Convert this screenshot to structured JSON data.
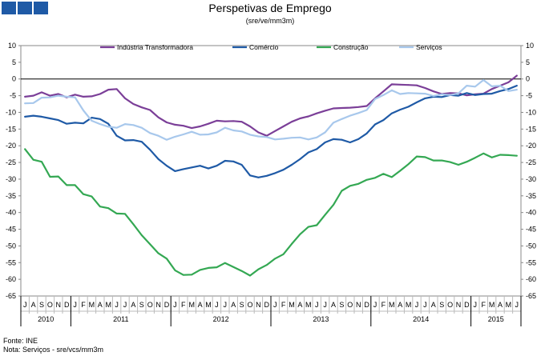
{
  "chart_data": {
    "type": "line",
    "title": "Perspetivas de Emprego",
    "subtitle": "(sre/ve/mm3m)",
    "ylim": [
      -65,
      10
    ],
    "yticks": [
      10,
      5,
      0,
      -5,
      -10,
      -15,
      -20,
      -25,
      -30,
      -35,
      -40,
      -45,
      -50,
      -55,
      -60,
      -65
    ],
    "grid": false,
    "legend_position": "top",
    "months": [
      "J",
      "A",
      "S",
      "O",
      "N",
      "D",
      "J",
      "F",
      "M",
      "A",
      "M",
      "J",
      "J",
      "A",
      "S",
      "O",
      "N",
      "D",
      "J",
      "F",
      "M",
      "A",
      "M",
      "J",
      "J",
      "A",
      "S",
      "O",
      "N",
      "D",
      "J",
      "F",
      "M",
      "A",
      "M",
      "J",
      "J",
      "A",
      "S",
      "O",
      "N",
      "D",
      "J",
      "F",
      "M",
      "A",
      "M",
      "J",
      "J",
      "A",
      "S",
      "O",
      "N",
      "D",
      "J",
      "F",
      "M",
      "A",
      "M",
      "J"
    ],
    "years": [
      {
        "label": "2010",
        "start": 0,
        "count": 6
      },
      {
        "label": "2011",
        "start": 6,
        "count": 12
      },
      {
        "label": "2012",
        "start": 18,
        "count": 12
      },
      {
        "label": "2013",
        "start": 30,
        "count": 12
      },
      {
        "label": "2014",
        "start": 42,
        "count": 12
      },
      {
        "label": "2015",
        "start": 54,
        "count": 6
      }
    ],
    "series": [
      {
        "name": "Indústria Transformadora",
        "color": "#7b3f98",
        "values": [
          -5.3,
          -5,
          -4,
          -5,
          -4.5,
          -5.5,
          -4.7,
          -5.3,
          -5.2,
          -4.5,
          -3.2,
          -3,
          -5.8,
          -7.5,
          -8.5,
          -9.3,
          -11.5,
          -13,
          -13.7,
          -14,
          -14.7,
          -14.2,
          -13.4,
          -12.5,
          -12.7,
          -12.6,
          -12.8,
          -14.2,
          -16,
          -17,
          -15.6,
          -14.2,
          -12.8,
          -11.8,
          -11.2,
          -10.3,
          -9.5,
          -8.8,
          -8.7,
          -8.6,
          -8.4,
          -8.1,
          -5.8,
          -3.7,
          -1.6,
          -1.7,
          -1.8,
          -1.9,
          -2.7,
          -3.7,
          -4.5,
          -4.2,
          -4.3,
          -4.9,
          -4.6,
          -4.4,
          -3,
          -2,
          -1,
          1
        ]
      },
      {
        "name": "Comércio",
        "color": "#1f5aa6",
        "values": [
          -11.3,
          -11,
          -11.3,
          -11.8,
          -12.3,
          -13.4,
          -13.1,
          -13.3,
          -11.6,
          -12,
          -13.4,
          -17,
          -18.4,
          -18.3,
          -18.8,
          -21.2,
          -24,
          -26,
          -27.6,
          -27,
          -26.5,
          -26,
          -26.8,
          -26,
          -24.5,
          -24.7,
          -25.7,
          -28.9,
          -29.5,
          -29,
          -28.2,
          -27.2,
          -25.7,
          -24,
          -22,
          -21,
          -19,
          -18,
          -18.2,
          -19,
          -18,
          -16.3,
          -13.6,
          -12.3,
          -10.3,
          -9.2,
          -8.3,
          -7,
          -5.8,
          -5.3,
          -5.4,
          -4.8,
          -5,
          -4.2,
          -4.8,
          -4.5,
          -4.4,
          -3.6,
          -3,
          -2
        ]
      },
      {
        "name": "Construção",
        "color": "#34a853",
        "values": [
          -21,
          -24.2,
          -24.8,
          -29.3,
          -29.2,
          -31.8,
          -31.8,
          -34.5,
          -35.2,
          -38.2,
          -38.7,
          -40.3,
          -40.4,
          -43.5,
          -46.8,
          -49.5,
          -52.2,
          -53.8,
          -57.3,
          -58.7,
          -58.6,
          -57.2,
          -56.6,
          -56.4,
          -55.1,
          -56.3,
          -57.5,
          -58.9,
          -57,
          -55.7,
          -53.8,
          -52.5,
          -49.4,
          -46.5,
          -44.3,
          -43.8,
          -40.7,
          -37.7,
          -33.5,
          -32,
          -31.4,
          -30.2,
          -29.6,
          -28.4,
          -29.4,
          -27.5,
          -25.5,
          -23.2,
          -23.4,
          -24.4,
          -24.4,
          -24.9,
          -25.7,
          -24.8,
          -23.6,
          -22.3,
          -23.5,
          -22.7,
          -22.8,
          -23
        ]
      },
      {
        "name": "Serviços",
        "color": "#a8c8ec",
        "values": [
          -7.3,
          -7.2,
          -5.6,
          -5.5,
          -5,
          -5.3,
          -5.5,
          -9.4,
          -12.5,
          -13.5,
          -14.3,
          -14.6,
          -13.5,
          -13.8,
          -14.6,
          -16.2,
          -17,
          -18.2,
          -17.3,
          -16.6,
          -15.8,
          -16.7,
          -16.6,
          -16,
          -14.6,
          -15.4,
          -15.7,
          -16.7,
          -17.2,
          -17.4,
          -18.1,
          -17.9,
          -17.6,
          -17.5,
          -18.1,
          -17.5,
          -16,
          -13.1,
          -12,
          -11,
          -10.2,
          -9.3,
          -6,
          -4.8,
          -3.4,
          -4.5,
          -4.2,
          -4.3,
          -4.4,
          -5.1,
          -4.6,
          -4.8,
          -4.3,
          -2,
          -2.3,
          -0.3,
          -2.2,
          -2,
          -3.6,
          -3.2
        ]
      }
    ]
  },
  "footer": {
    "source": "Fonte: INE",
    "note": "Nota: Serviços - sre/vcs/mm3m"
  }
}
